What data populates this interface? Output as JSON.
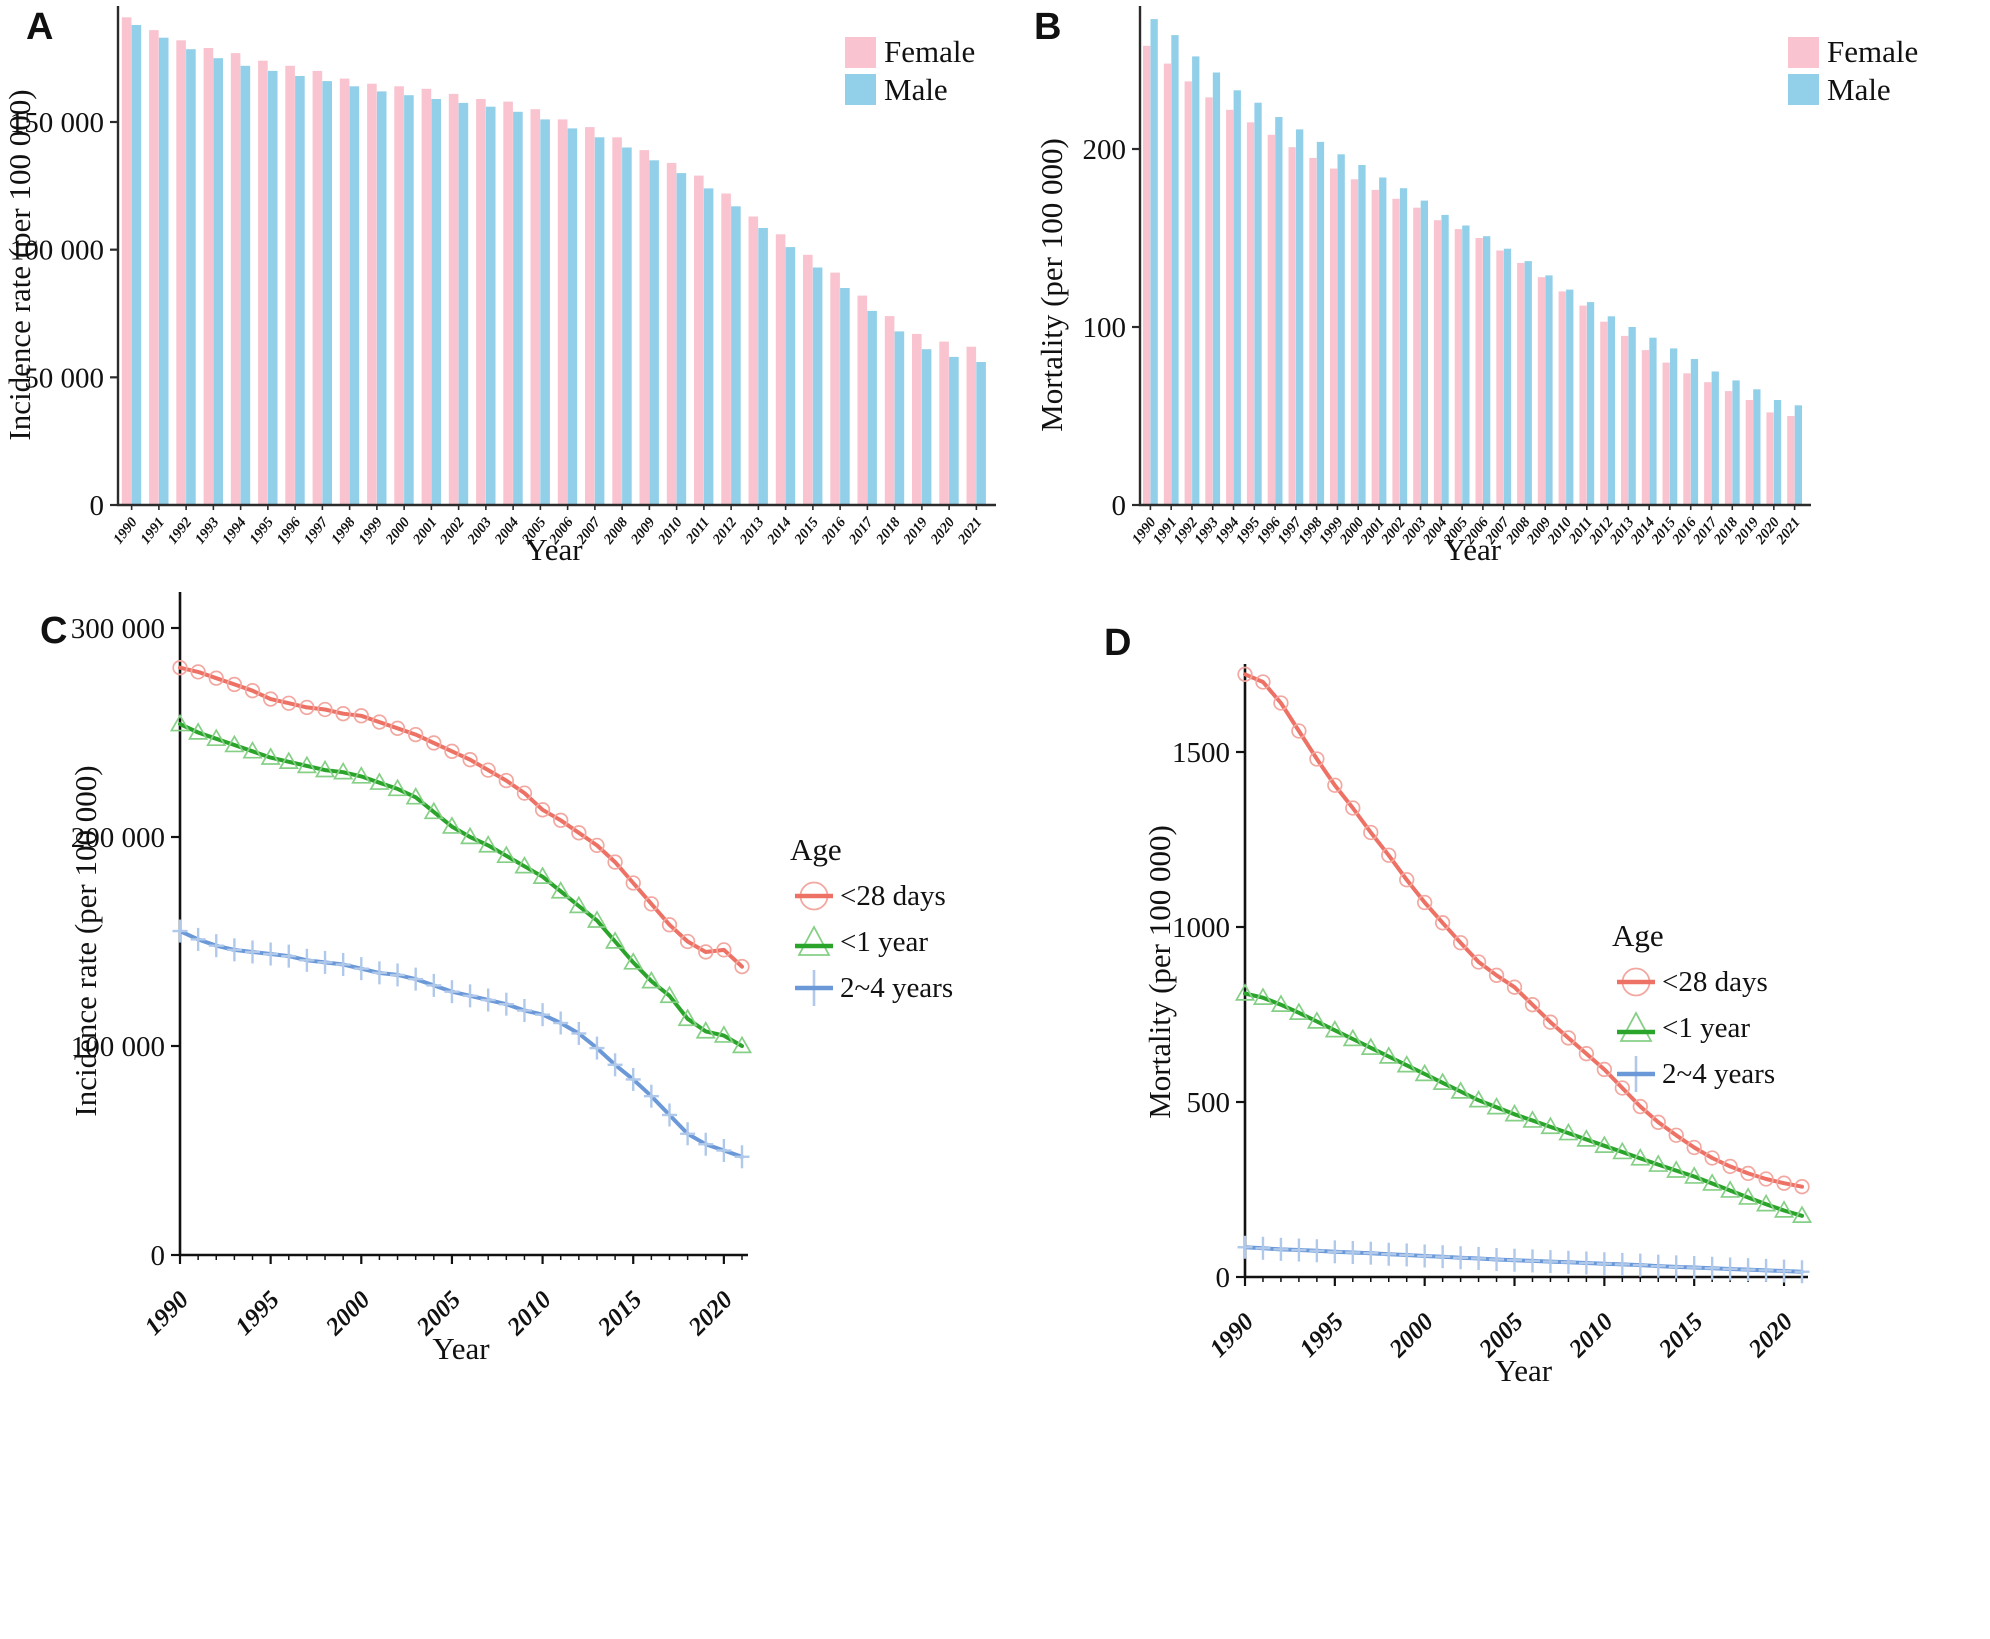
{
  "colors": {
    "female": "#f9c4cf",
    "male": "#92cfe8",
    "red": "#ed7265",
    "red_light": "#f2a7a0",
    "green": "#2aa42a",
    "green_light": "#86cf86",
    "blue": "#6b99d8",
    "blue_light": "#b0c9ea",
    "axis": "#2b2b2b",
    "text": "#111111"
  },
  "chart_data": [
    {
      "panel": "A",
      "type": "bar",
      "title": "",
      "xlabel": "Year",
      "ylabel": "Incidence rate (per 100 000)",
      "ylim": [
        0,
        195000
      ],
      "grid": false,
      "legend_position": "top-right",
      "categories": [
        1990,
        1991,
        1992,
        1993,
        1994,
        1995,
        1996,
        1997,
        1998,
        1999,
        2000,
        2001,
        2002,
        2003,
        2004,
        2005,
        2006,
        2007,
        2008,
        2009,
        2010,
        2011,
        2012,
        2013,
        2014,
        2015,
        2016,
        2017,
        2018,
        2019,
        2020,
        2021
      ],
      "yticks": [
        {
          "v": 0,
          "label": "0"
        },
        {
          "v": 50000,
          "label": "50 000"
        },
        {
          "v": 100000,
          "label": "100 000"
        },
        {
          "v": 150000,
          "label": "150 000"
        }
      ],
      "series": [
        {
          "name": "Female",
          "color_key": "female",
          "values": [
            191000,
            186000,
            182000,
            179000,
            177000,
            174000,
            172000,
            170000,
            167000,
            165000,
            164000,
            163000,
            161000,
            159000,
            158000,
            155000,
            151000,
            148000,
            144000,
            139000,
            134000,
            129000,
            122000,
            113000,
            106000,
            98000,
            91000,
            82000,
            74000,
            67000,
            64000,
            62000
          ]
        },
        {
          "name": "Male",
          "color_key": "male",
          "values": [
            188000,
            183000,
            178500,
            175000,
            172000,
            170000,
            168000,
            166000,
            164000,
            162000,
            160500,
            159000,
            157500,
            156000,
            154000,
            151000,
            147500,
            144000,
            140000,
            135000,
            130000,
            124000,
            117000,
            108500,
            101000,
            93000,
            85000,
            76000,
            68000,
            61000,
            58000,
            56000
          ]
        }
      ]
    },
    {
      "panel": "B",
      "type": "bar",
      "title": "",
      "xlabel": "Year",
      "ylabel": "Mortality (per 100 000)",
      "ylim": [
        0,
        284
      ],
      "grid": false,
      "legend_position": "top-right",
      "categories": [
        1990,
        1991,
        1992,
        1993,
        1994,
        1995,
        1996,
        1997,
        1998,
        1999,
        2000,
        2001,
        2002,
        2003,
        2004,
        2005,
        2006,
        2007,
        2008,
        2009,
        2010,
        2011,
        2012,
        2013,
        2014,
        2015,
        2016,
        2017,
        2018,
        2019,
        2020,
        2021
      ],
      "yticks": [
        {
          "v": 0,
          "label": "0"
        },
        {
          "v": 100,
          "label": "100"
        },
        {
          "v": 200,
          "label": "200"
        }
      ],
      "series": [
        {
          "name": "Female",
          "color_key": "female",
          "values": [
            258,
            248,
            238,
            229,
            222,
            215,
            208,
            201,
            195,
            189,
            183,
            177,
            172,
            167,
            160,
            155,
            150,
            143,
            136,
            128,
            120,
            112,
            103,
            95,
            87,
            80,
            74,
            69,
            64,
            59,
            52,
            50
          ]
        },
        {
          "name": "Male",
          "color_key": "male",
          "values": [
            273,
            264,
            252,
            243,
            233,
            226,
            218,
            211,
            204,
            197,
            191,
            184,
            178,
            171,
            163,
            157,
            151,
            144,
            137,
            129,
            121,
            114,
            106,
            100,
            94,
            88,
            82,
            75,
            70,
            65,
            59,
            56
          ]
        }
      ]
    },
    {
      "panel": "C",
      "type": "line",
      "title": "",
      "xlabel": "Year",
      "ylabel": "Incidence rate (per 100 000)",
      "ylim": [
        0,
        315000
      ],
      "grid": false,
      "legend_title": "Age",
      "legend_position": "right",
      "x": [
        1990,
        1991,
        1992,
        1993,
        1994,
        1995,
        1996,
        1997,
        1998,
        1999,
        2000,
        2001,
        2002,
        2003,
        2004,
        2005,
        2006,
        2007,
        2008,
        2009,
        2010,
        2011,
        2012,
        2013,
        2014,
        2015,
        2016,
        2017,
        2018,
        2019,
        2020,
        2021
      ],
      "xticks_major": [
        1990,
        1995,
        2000,
        2005,
        2010,
        2015,
        2020
      ],
      "yticks": [
        {
          "v": 0,
          "label": "0"
        },
        {
          "v": 100000,
          "label": "100 000"
        },
        {
          "v": 200000,
          "label": "200 000"
        },
        {
          "v": 300000,
          "label": "300 000"
        }
      ],
      "series": [
        {
          "name": "<28 days",
          "marker": "circle",
          "color_key": "red",
          "marker_color_key": "red_light",
          "values": [
            281000,
            279000,
            276000,
            273000,
            270000,
            266000,
            264000,
            262000,
            261000,
            259000,
            258000,
            255000,
            252000,
            249000,
            245000,
            241000,
            237000,
            232000,
            227000,
            221000,
            213000,
            208000,
            202000,
            196000,
            188000,
            178000,
            168000,
            158000,
            150000,
            145000,
            146000,
            138000
          ]
        },
        {
          "name": "<1 year",
          "marker": "triangle",
          "color_key": "green",
          "marker_color_key": "green_light",
          "values": [
            254000,
            250000,
            247000,
            244000,
            241000,
            238000,
            236000,
            234000,
            232000,
            231000,
            229000,
            226000,
            223000,
            219000,
            212000,
            205000,
            200000,
            196000,
            191000,
            186000,
            181000,
            174000,
            167000,
            160000,
            150000,
            140000,
            131000,
            124000,
            113000,
            107000,
            105000,
            100000
          ]
        },
        {
          "name": "2~4 years",
          "marker": "plus",
          "color_key": "blue",
          "marker_color_key": "blue_light",
          "values": [
            155000,
            151000,
            148000,
            146000,
            145000,
            144000,
            143000,
            141000,
            140000,
            139000,
            137000,
            135000,
            134000,
            132000,
            129000,
            126000,
            124000,
            122000,
            120000,
            117000,
            115000,
            111000,
            106000,
            99000,
            91000,
            84000,
            76000,
            67000,
            58000,
            53000,
            50000,
            47000
          ]
        }
      ]
    },
    {
      "panel": "D",
      "type": "line",
      "title": "",
      "xlabel": "Year",
      "ylabel": "Mortality (per 100 000)",
      "ylim": [
        0,
        1750
      ],
      "grid": false,
      "legend_title": "Age",
      "legend_position": "right",
      "x": [
        1990,
        1991,
        1992,
        1993,
        1994,
        1995,
        1996,
        1997,
        1998,
        1999,
        2000,
        2001,
        2002,
        2003,
        2004,
        2005,
        2006,
        2007,
        2008,
        2009,
        2010,
        2011,
        2012,
        2013,
        2014,
        2015,
        2016,
        2017,
        2018,
        2019,
        2020,
        2021
      ],
      "xticks_major": [
        1990,
        1995,
        2000,
        2005,
        2010,
        2015,
        2020
      ],
      "yticks": [
        {
          "v": 0,
          "label": "0"
        },
        {
          "v": 500,
          "label": "500"
        },
        {
          "v": 1000,
          "label": "1000"
        },
        {
          "v": 1500,
          "label": "1500"
        }
      ],
      "series": [
        {
          "name": "<28 days",
          "marker": "circle",
          "color_key": "red",
          "marker_color_key": "red_light",
          "values": [
            1722,
            1700,
            1640,
            1560,
            1480,
            1405,
            1340,
            1270,
            1205,
            1135,
            1070,
            1012,
            955,
            900,
            862,
            828,
            778,
            728,
            683,
            638,
            593,
            540,
            487,
            442,
            405,
            370,
            340,
            316,
            296,
            280,
            268,
            258
          ]
        },
        {
          "name": "<1 year",
          "marker": "triangle",
          "color_key": "green",
          "marker_color_key": "green_light",
          "values": [
            810,
            798,
            778,
            755,
            730,
            705,
            680,
            655,
            630,
            605,
            580,
            555,
            530,
            505,
            485,
            465,
            447,
            429,
            411,
            393,
            375,
            357,
            339,
            321,
            304,
            287,
            267,
            247,
            227,
            208,
            190,
            175
          ]
        },
        {
          "name": "2~4 years",
          "marker": "plus",
          "color_key": "blue",
          "marker_color_key": "blue_light",
          "values": [
            85,
            82,
            79,
            77,
            75,
            72,
            70,
            68,
            65,
            63,
            60,
            58,
            55,
            53,
            50,
            48,
            46,
            44,
            42,
            40,
            38,
            36,
            34,
            31,
            29,
            27,
            25,
            23,
            21,
            19,
            17,
            15
          ]
        }
      ]
    }
  ]
}
